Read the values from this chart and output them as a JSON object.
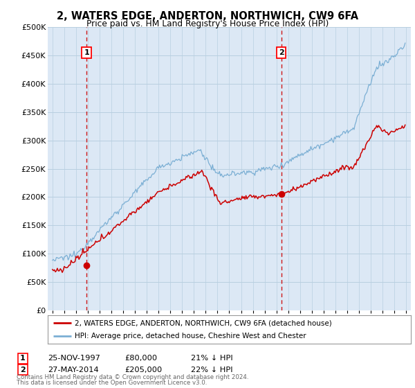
{
  "title": "2, WATERS EDGE, ANDERTON, NORTHWICH, CW9 6FA",
  "subtitle": "Price paid vs. HM Land Registry's House Price Index (HPI)",
  "sale1_date": "25-NOV-1997",
  "sale1_price": 80000,
  "sale1_label": "1",
  "sale1_year": 1997.9,
  "sale1_pct": "21% ↓ HPI",
  "sale2_date": "27-MAY-2014",
  "sale2_price": 205000,
  "sale2_label": "2",
  "sale2_year": 2014.4,
  "sale2_pct": "22% ↓ HPI",
  "legend_line1": "2, WATERS EDGE, ANDERTON, NORTHWICH, CW9 6FA (detached house)",
  "legend_line2": "HPI: Average price, detached house, Cheshire West and Chester",
  "footer1": "Contains HM Land Registry data © Crown copyright and database right 2024.",
  "footer2": "This data is licensed under the Open Government Licence v3.0.",
  "hpi_color": "#7bafd4",
  "price_color": "#cc0000",
  "plot_bg_color": "#dce8f5",
  "grid_color": "#b8cfe0",
  "dashed_line_color": "#cc0000",
  "ylim": [
    0,
    500000
  ],
  "yticks": [
    0,
    50000,
    100000,
    150000,
    200000,
    250000,
    300000,
    350000,
    400000,
    450000,
    500000
  ],
  "xlim_start": 1994.6,
  "xlim_end": 2025.4
}
